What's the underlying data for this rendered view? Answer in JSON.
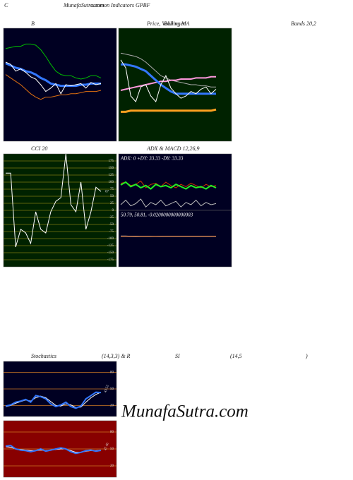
{
  "header": {
    "left": "C",
    "site": "MunafaSutra.com",
    "title": "common Indicators GPBF",
    "labels": [
      "B",
      "Price, Volume, MA",
      "Bollinger",
      "Bands 20,2",
      "CCI 20",
      "ADX  & MACD 12,26,9",
      "Stochastics",
      "(14,3,3) & R",
      "SI",
      "(14,5",
      ")"
    ],
    "watermark": "MunafaSutra.com"
  },
  "chart_data": [
    {
      "type": "line",
      "background": "#000022",
      "ylim": [
        0,
        100
      ],
      "series": [
        {
          "color": "#00bb00",
          "values": [
            82,
            83,
            84,
            84,
            86,
            86,
            85,
            81,
            75,
            68,
            62,
            59,
            58,
            58,
            56,
            55,
            56,
            58,
            58,
            56
          ]
        },
        {
          "color": "#e07010",
          "values": [
            59,
            56,
            53,
            50,
            46,
            42,
            39,
            37,
            39,
            39,
            40,
            41,
            41,
            42,
            42,
            43,
            44,
            44,
            44,
            45
          ]
        },
        {
          "color": "#3377ff",
          "width": 3,
          "values": [
            69,
            67,
            65,
            64,
            62,
            61,
            59,
            56,
            54,
            51,
            50,
            49,
            49,
            49,
            49,
            50,
            50,
            51,
            51,
            51
          ]
        },
        {
          "color": "#ffffff",
          "values": [
            70,
            68,
            62,
            64,
            61,
            57,
            55,
            50,
            44,
            47,
            51,
            42,
            50,
            49,
            50,
            51,
            47,
            52,
            50,
            51
          ]
        }
      ]
    },
    {
      "type": "line",
      "background": "#002200",
      "ylim": [
        0,
        100
      ],
      "series": [
        {
          "color": "#aaaaaa",
          "values": [
            78,
            77,
            76,
            75,
            73,
            70,
            66,
            62,
            58,
            56,
            54,
            53,
            52,
            51,
            50,
            50,
            49,
            49,
            48,
            48
          ]
        },
        {
          "color": "#ff99dd",
          "width": 2,
          "values": [
            45,
            46,
            47,
            48,
            49,
            50,
            51,
            52,
            53,
            53,
            54,
            54,
            55,
            55,
            55,
            56,
            56,
            56,
            57,
            57
          ]
        },
        {
          "color": "#ffa020",
          "width": 3,
          "values": [
            26,
            26,
            27,
            27,
            27,
            27,
            27,
            27,
            27,
            27,
            27,
            27,
            27,
            27,
            27,
            27,
            27,
            27,
            27,
            28
          ]
        },
        {
          "color": "#3377ff",
          "width": 3,
          "values": [
            68,
            68,
            67,
            66,
            64,
            62,
            58,
            54,
            50,
            47,
            44,
            42,
            42,
            42,
            42,
            42,
            42,
            42,
            42,
            42
          ]
        },
        {
          "color": "#ffffff",
          "values": [
            72,
            65,
            40,
            35,
            48,
            50,
            40,
            35,
            50,
            58,
            47,
            42,
            38,
            40,
            44,
            42,
            46,
            48,
            42,
            46
          ]
        }
      ]
    },
    {
      "type": "line",
      "background": "#002200",
      "grid": true,
      "grid_color": "#7a7a10",
      "label_last": true,
      "ylim": [
        -200,
        200
      ],
      "yticks": [
        175,
        150,
        125,
        100,
        75,
        50,
        25,
        0,
        -25,
        -50,
        -75,
        -100,
        -125,
        -150,
        -175
      ],
      "series": [
        {
          "color": "#ffffff",
          "values": [
            132,
            132,
            -130,
            -67,
            -80,
            -117,
            -5,
            -67,
            -80,
            -5,
            32,
            45,
            200,
            20,
            -5,
            100,
            -67,
            -5,
            82,
            67
          ]
        }
      ]
    },
    {
      "type": "line",
      "background": "#000022",
      "ylim": [
        0,
        100
      ],
      "annotation": "ADX: 0  +DY: 33.33 -DY: 33.33",
      "series": [
        {
          "color": "#cc3300",
          "values": [
            48,
            50,
            44,
            46,
            52,
            40,
            46,
            48,
            42,
            50,
            44,
            40,
            46,
            42,
            48,
            44,
            40,
            46,
            42,
            44
          ]
        },
        {
          "color": "#22ee22",
          "width": 2,
          "values": [
            45,
            50,
            42,
            46,
            40,
            44,
            38,
            46,
            42,
            44,
            40,
            46,
            42,
            38,
            44,
            40,
            42,
            38,
            44,
            40
          ]
        },
        {
          "color": "#bbbbbb",
          "values": [
            10,
            18,
            8,
            12,
            20,
            6,
            14,
            10,
            18,
            8,
            12,
            16,
            6,
            14,
            10,
            18,
            8,
            14,
            10,
            12
          ]
        }
      ]
    },
    {
      "type": "line",
      "background": "#000022",
      "ylim": [
        40,
        60
      ],
      "annotation": "50.79, 50.81, -0.0200000000000003",
      "series": [
        {
          "color": "#ffffff",
          "values": [
            50.9,
            50.9,
            50.85,
            50.85,
            50.8,
            50.8,
            50.8,
            50.78,
            50.78,
            50.79,
            50.79,
            50.79,
            50.79,
            50.79,
            50.79,
            50.79,
            50.79,
            50.79,
            50.79,
            50.79
          ]
        },
        {
          "color": "#ff8833",
          "values": [
            50.8,
            50.8,
            50.78,
            50.76,
            50.75,
            50.75,
            50.76,
            50.78,
            50.79,
            50.8,
            50.8,
            50.8,
            50.81,
            50.81,
            50.81,
            50.81,
            50.81,
            50.81,
            50.81,
            50.81
          ]
        }
      ]
    },
    {
      "type": "line",
      "background": "#000022",
      "grid": true,
      "grid_color": "#cc7722",
      "label_last": true,
      "ylim": [
        0,
        100
      ],
      "yticks": [
        80,
        50,
        20
      ],
      "series": [
        {
          "color": "#ffffff",
          "values": [
            18,
            20,
            24,
            27,
            30,
            28,
            34,
            37,
            34,
            27,
            20,
            19,
            23,
            21,
            16,
            17,
            26,
            34,
            40,
            44
          ]
        },
        {
          "color": "#3377ff",
          "width": 2,
          "values": [
            19,
            21,
            26,
            28,
            31,
            26,
            38,
            36,
            32,
            23,
            18,
            21,
            26,
            18,
            15,
            19,
            32,
            38,
            44,
            43.52
          ]
        }
      ]
    },
    {
      "type": "line",
      "background": "#880000",
      "grid": true,
      "grid_color": "#cc7722",
      "label_last": true,
      "ylim": [
        0,
        100
      ],
      "yticks": [
        80,
        50,
        20
      ],
      "series": [
        {
          "color": "#ffffff",
          "values": [
            54,
            53,
            50,
            49,
            48,
            47,
            47,
            48,
            47,
            48,
            49,
            50,
            50,
            47,
            44,
            44,
            46,
            47,
            47,
            48
          ]
        },
        {
          "color": "#3377ff",
          "width": 2,
          "values": [
            55,
            56,
            50,
            48,
            47,
            45,
            47,
            50,
            46,
            48,
            50,
            52,
            50,
            45,
            42,
            44,
            47,
            48,
            46,
            47.46
          ]
        }
      ]
    }
  ]
}
